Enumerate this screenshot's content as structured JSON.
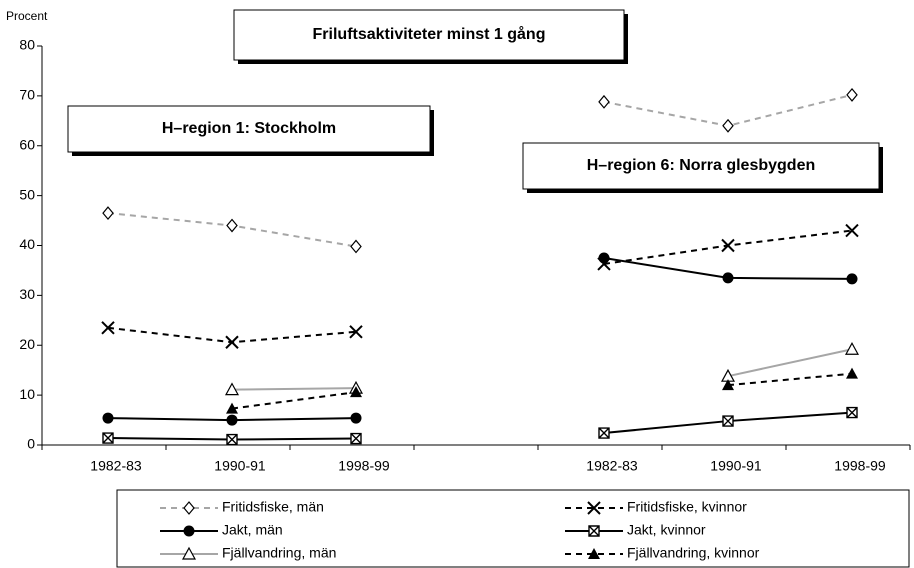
{
  "chart_data": {
    "type": "line",
    "title": "Friluftsaktiviteter minst 1 gång",
    "ylabel": "Procent",
    "annotations": [
      "H–region 1: Stockholm",
      "H–region 6: Norra glesbygden"
    ],
    "categories": [
      "1982-83",
      "1990-91",
      "1998-99",
      null,
      "1982-83",
      "1990-91",
      "1998-99"
    ],
    "ylim": [
      0,
      80
    ],
    "yticks": [
      0,
      10,
      20,
      30,
      40,
      50,
      60,
      70,
      80
    ],
    "grid": false,
    "series": [
      {
        "name": "Fritidsfiske, män",
        "color": "#a6a6a6",
        "dash": true,
        "marker": "diamond",
        "values": [
          46.5,
          44,
          39.8,
          null,
          68.8,
          64,
          70.2
        ]
      },
      {
        "name": "Fritidsfiske, kvinnor",
        "color": "#000000",
        "dash": true,
        "marker": "x",
        "values": [
          23.5,
          20.6,
          22.7,
          null,
          36.3,
          40,
          43
        ]
      },
      {
        "name": "Jakt, män",
        "color": "#000000",
        "dash": false,
        "marker": "circle",
        "values": [
          5.4,
          5,
          5.4,
          null,
          37.5,
          33.5,
          33.3
        ]
      },
      {
        "name": "Jakt, kvinnor",
        "color": "#000000",
        "dash": false,
        "marker": "boxx",
        "values": [
          1.4,
          1.1,
          1.3,
          null,
          2.4,
          4.8,
          6.5
        ]
      },
      {
        "name": "Fjällvandring, män",
        "color": "#a6a6a6",
        "dash": false,
        "marker": "triangle",
        "values": [
          null,
          11.1,
          11.4,
          null,
          null,
          13.8,
          19.2
        ]
      },
      {
        "name": "Fjällvandring, kvinnor",
        "color": "#000000",
        "dash": true,
        "marker": "filledtriangle",
        "values": [
          null,
          7.3,
          10.6,
          null,
          null,
          12,
          14.3
        ]
      }
    ]
  }
}
